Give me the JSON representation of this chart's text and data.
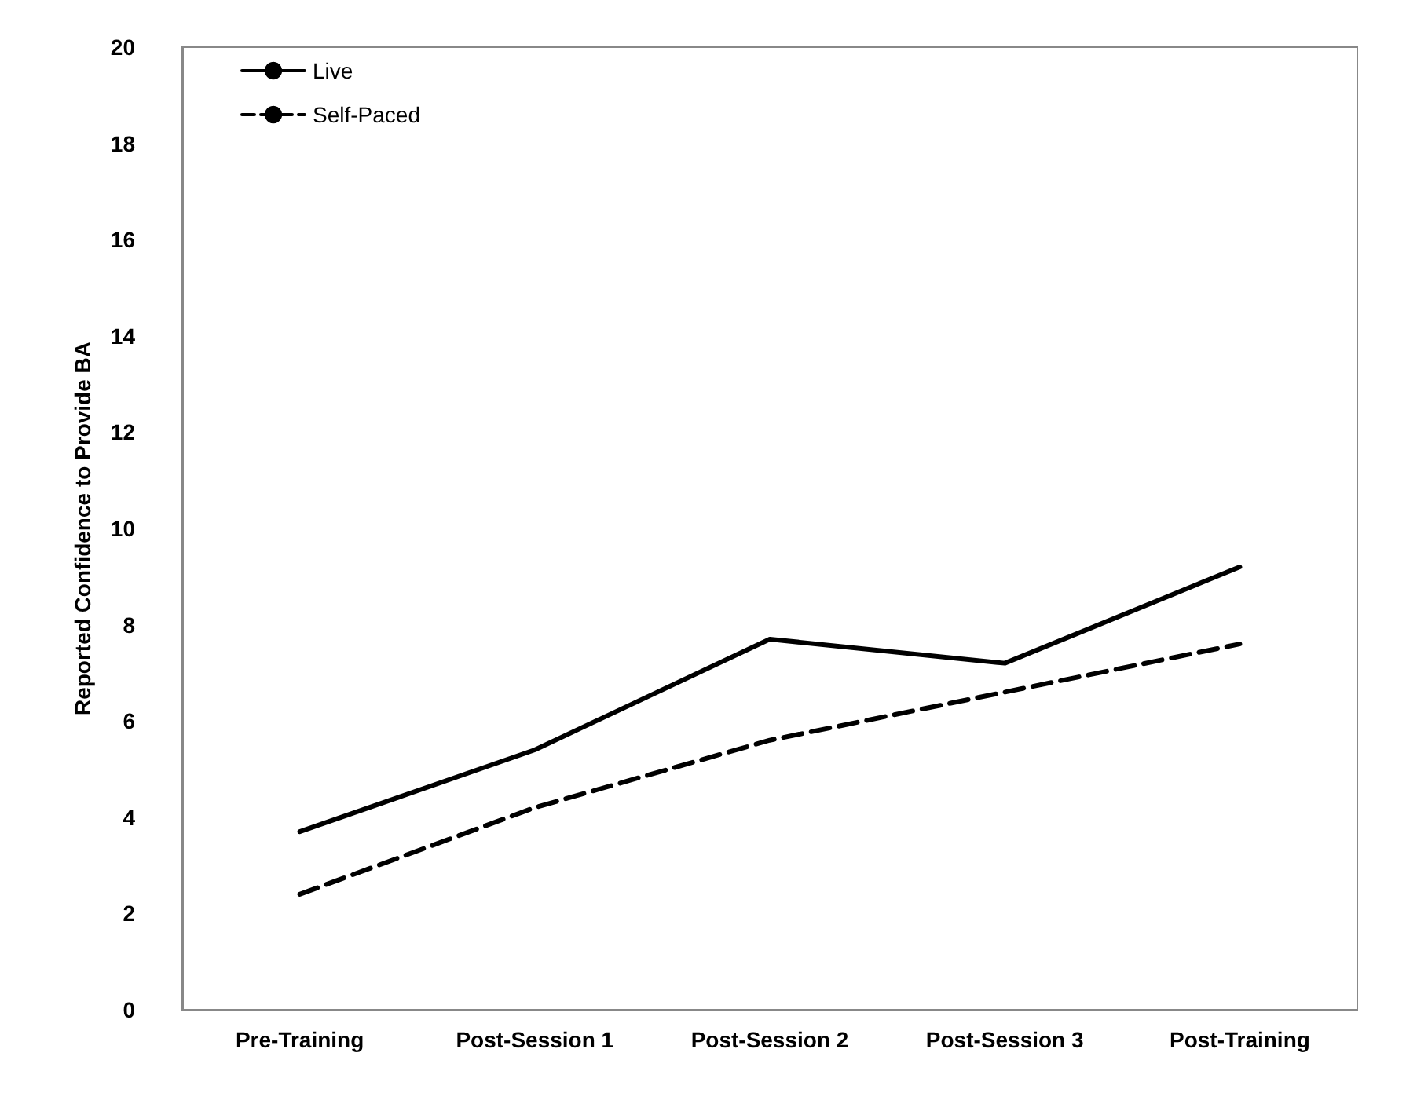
{
  "chart_data": {
    "type": "line",
    "ylabel": "Reported Confidence to Provide BA",
    "categories": [
      "Pre-Training",
      "Post-Session 1",
      "Post-Session 2",
      "Post-Session 3",
      "Post-Training"
    ],
    "series": [
      {
        "name": "Live",
        "color": "#000000",
        "line_style": "solid",
        "values": [
          3.7,
          5.4,
          7.7,
          7.2,
          9.2
        ]
      },
      {
        "name": "Self-Paced",
        "color": "#000000",
        "line_style": "dashed",
        "values": [
          2.4,
          4.2,
          5.6,
          6.6,
          7.6
        ]
      }
    ],
    "ylim": [
      0,
      20
    ],
    "yticks": [
      0,
      2,
      4,
      6,
      8,
      10,
      12,
      14,
      16,
      18,
      20
    ],
    "grid": false,
    "legend": "top left",
    "marker": "none"
  }
}
